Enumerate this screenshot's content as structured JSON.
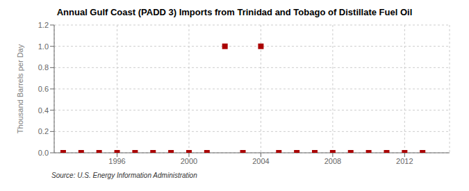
{
  "chart_data": {
    "type": "scatter",
    "title": "Annual Gulf Coast (PADD 3) Imports from Trinidad and Tobago of Distillate Fuel Oil",
    "y_label": "Thousand Barrels per Day",
    "annotations": [
      "Source: U.S. Energy Information Administration"
    ],
    "x": [
      1993,
      1994,
      1995,
      1996,
      1997,
      1998,
      1999,
      2000,
      2001,
      2002,
      2003,
      2004,
      2005,
      2006,
      2007,
      2008,
      2009,
      2010,
      2011,
      2012,
      2013
    ],
    "values": [
      0.0,
      0.0,
      0.0,
      0.0,
      0.0,
      0.0,
      0.0,
      0.0,
      0.0,
      1.0,
      0.0,
      1.0,
      0.0,
      0.0,
      0.0,
      0.0,
      0.0,
      0.0,
      0.0,
      0.0,
      0.0
    ],
    "color": "#aa0000",
    "marker": "square",
    "grid": true,
    "xlim": [
      1992.5,
      2014.5
    ],
    "xticks": [
      1996,
      2000,
      2004,
      2008,
      2012
    ],
    "ylim": [
      0.0,
      1.2
    ],
    "yticks": [
      {
        "value": 0.0,
        "label": "0.0"
      },
      0.2,
      0.4,
      0.6,
      0.8,
      {
        "value": 1.0,
        "label": "1.0"
      },
      1.2
    ]
  }
}
